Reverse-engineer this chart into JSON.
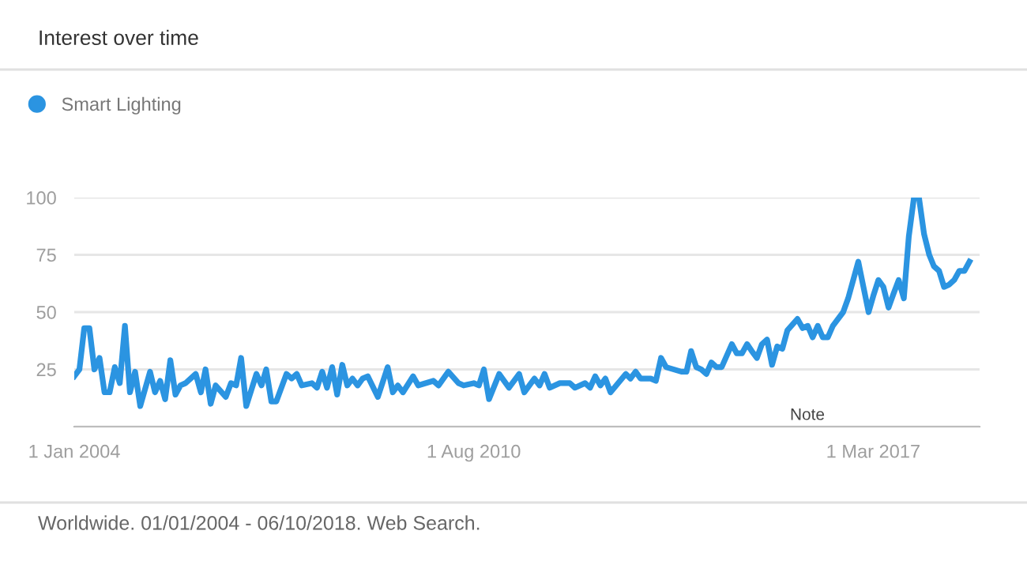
{
  "chart_data": {
    "type": "line",
    "title": "Interest over time",
    "annotations": [
      "Worldwide. 01/01/2004 - 06/10/2018. Web Search.",
      "Note"
    ],
    "x": [
      "2004-01",
      "2004-02",
      "2004-03",
      "2004-04",
      "2004-05",
      "2004-06",
      "2004-07",
      "2004-08",
      "2004-09",
      "2004-10",
      "2004-11",
      "2004-12",
      "2005-01",
      "2005-02",
      "2005-04",
      "2005-05",
      "2005-06",
      "2005-07",
      "2005-08",
      "2005-09",
      "2005-10",
      "2005-11",
      "2006-01",
      "2006-02",
      "2006-03",
      "2006-04",
      "2006-05",
      "2006-07",
      "2006-08",
      "2006-09",
      "2006-10",
      "2006-11",
      "2007-01",
      "2007-02",
      "2007-03",
      "2007-04",
      "2007-05",
      "2007-07",
      "2007-08",
      "2007-09",
      "2007-10",
      "2007-12",
      "2008-01",
      "2008-02",
      "2008-03",
      "2008-04",
      "2008-05",
      "2008-06",
      "2008-07",
      "2008-08",
      "2008-09",
      "2008-10",
      "2008-11",
      "2009-01",
      "2009-03",
      "2009-04",
      "2009-05",
      "2009-06",
      "2009-08",
      "2009-09",
      "2009-12",
      "2010-01",
      "2010-03",
      "2010-05",
      "2010-06",
      "2010-08",
      "2010-09",
      "2010-10",
      "2010-11",
      "2011-01",
      "2011-03",
      "2011-05",
      "2011-06",
      "2011-08",
      "2011-09",
      "2011-10",
      "2011-11",
      "2012-01",
      "2012-03",
      "2012-04",
      "2012-06",
      "2012-07",
      "2012-08",
      "2012-09",
      "2012-10",
      "2012-11",
      "2013-02",
      "2013-03",
      "2013-04",
      "2013-05",
      "2013-07",
      "2013-08",
      "2013-09",
      "2013-10",
      "2014-01",
      "2014-02",
      "2014-03",
      "2014-04",
      "2014-05",
      "2014-06",
      "2014-07",
      "2014-08",
      "2014-09",
      "2014-11",
      "2014-12",
      "2015-01",
      "2015-02",
      "2015-03",
      "2015-04",
      "2015-05",
      "2015-06",
      "2015-07",
      "2015-08",
      "2015-09",
      "2015-10",
      "2015-12",
      "2016-01",
      "2016-02",
      "2016-03",
      "2016-04",
      "2016-05",
      "2016-06",
      "2016-07",
      "2016-09",
      "2016-10",
      "2016-12",
      "2017-01",
      "2017-02",
      "2017-03",
      "2017-04",
      "2017-05",
      "2017-06",
      "2017-07",
      "2017-08",
      "2017-09",
      "2017-10",
      "2017-11",
      "2017-12",
      "2018-01",
      "2018-02",
      "2018-03",
      "2018-04",
      "2018-05",
      "2018-06",
      "2018-07",
      "2018-08",
      "2018-09",
      "2018-10"
    ],
    "series": [
      {
        "name": "Smart Lighting",
        "color": "#2b94e1",
        "values": [
          22,
          25,
          43,
          43,
          25,
          30,
          15,
          15,
          26,
          19,
          44,
          15,
          24,
          9,
          24,
          15,
          20,
          12,
          29,
          14,
          18,
          19,
          23,
          15,
          25,
          10,
          18,
          13,
          19,
          18,
          30,
          9,
          23,
          18,
          25,
          11,
          11,
          23,
          21,
          23,
          18,
          19,
          17,
          24,
          17,
          26,
          14,
          27,
          18,
          21,
          18,
          21,
          22,
          13,
          26,
          15,
          18,
          15,
          22,
          18,
          20,
          18,
          24,
          19,
          18,
          19,
          18,
          25,
          12,
          23,
          17,
          23,
          15,
          21,
          18,
          23,
          17,
          19,
          19,
          17,
          19,
          17,
          22,
          18,
          21,
          15,
          23,
          21,
          24,
          21,
          21,
          20,
          30,
          26,
          24,
          24,
          33,
          26,
          25,
          23,
          28,
          26,
          26,
          36,
          32,
          32,
          36,
          33,
          30,
          36,
          38,
          27,
          35,
          34,
          42,
          47,
          43,
          44,
          39,
          44,
          39,
          39,
          44,
          50,
          56,
          72,
          61,
          50,
          57,
          64,
          61,
          52,
          58,
          64,
          56,
          83,
          100,
          100,
          84,
          75,
          70,
          68,
          61,
          62,
          64,
          68,
          68,
          72
        ]
      }
    ],
    "xlim": [
      "2004-01-01",
      "2018-12-01"
    ],
    "xticks": [
      {
        "value": "2004-01-01",
        "label": "1 Jan 2004"
      },
      {
        "value": "2010-08-01",
        "label": "1 Aug 2010"
      },
      {
        "value": "2017-03-01",
        "label": "1 Mar 2017"
      }
    ],
    "ylim": [
      0,
      100
    ],
    "yticks": [
      {
        "value": 0,
        "label": null
      },
      25,
      50,
      75,
      100
    ],
    "grid": "y",
    "legend": "top left",
    "marker": "none",
    "line_style": "solid"
  }
}
